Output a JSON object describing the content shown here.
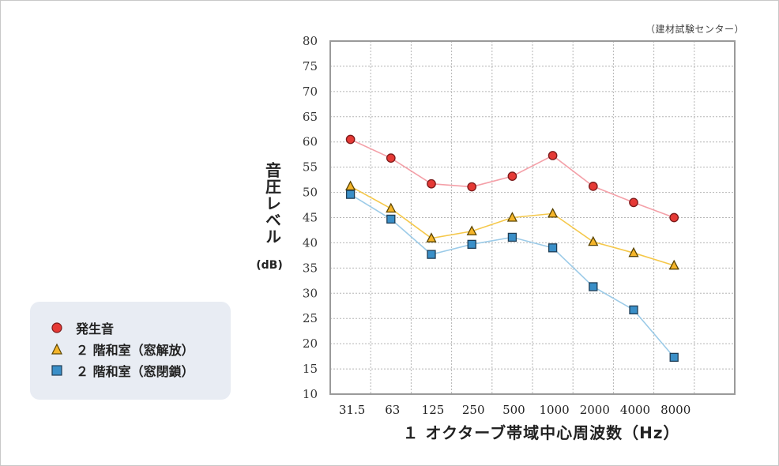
{
  "chart_data": {
    "type": "line",
    "title": "",
    "source_note": "（建材試験センター）",
    "ylabel": "音圧レベル",
    "ylabel_unit": "(dB)",
    "xlabel": "１ オクターブ帯域中心周波数（Hz）",
    "categories": [
      "31.5",
      "63",
      "125",
      "250",
      "500",
      "1000",
      "2000",
      "4000",
      "8000"
    ],
    "ylim": [
      10,
      80
    ],
    "yticks": [
      80,
      75,
      70,
      65,
      60,
      55,
      50,
      45,
      40,
      35,
      30,
      25,
      20,
      15,
      10
    ],
    "grid": true,
    "legend_position": "left",
    "series": [
      {
        "name": "発生音",
        "marker": "circle",
        "color": "#f4a0a8",
        "marker_color": "#e53935",
        "values": [
          60.5,
          56.8,
          51.7,
          51.1,
          53.2,
          57.3,
          51.2,
          48.0,
          45.0
        ]
      },
      {
        "name": "２ 階和室（窓解放）",
        "marker": "triangle",
        "color": "#f5c84a",
        "marker_color": "#f5b52a",
        "values": [
          51.2,
          46.8,
          40.9,
          42.3,
          45.0,
          45.8,
          40.2,
          38.0,
          35.5
        ]
      },
      {
        "name": "２ 階和室（窓閉鎖）",
        "marker": "square",
        "color": "#9ccbe8",
        "marker_color": "#3a8fc8",
        "values": [
          49.6,
          44.7,
          37.7,
          39.7,
          41.1,
          39.0,
          31.3,
          26.7,
          17.3
        ]
      }
    ]
  }
}
